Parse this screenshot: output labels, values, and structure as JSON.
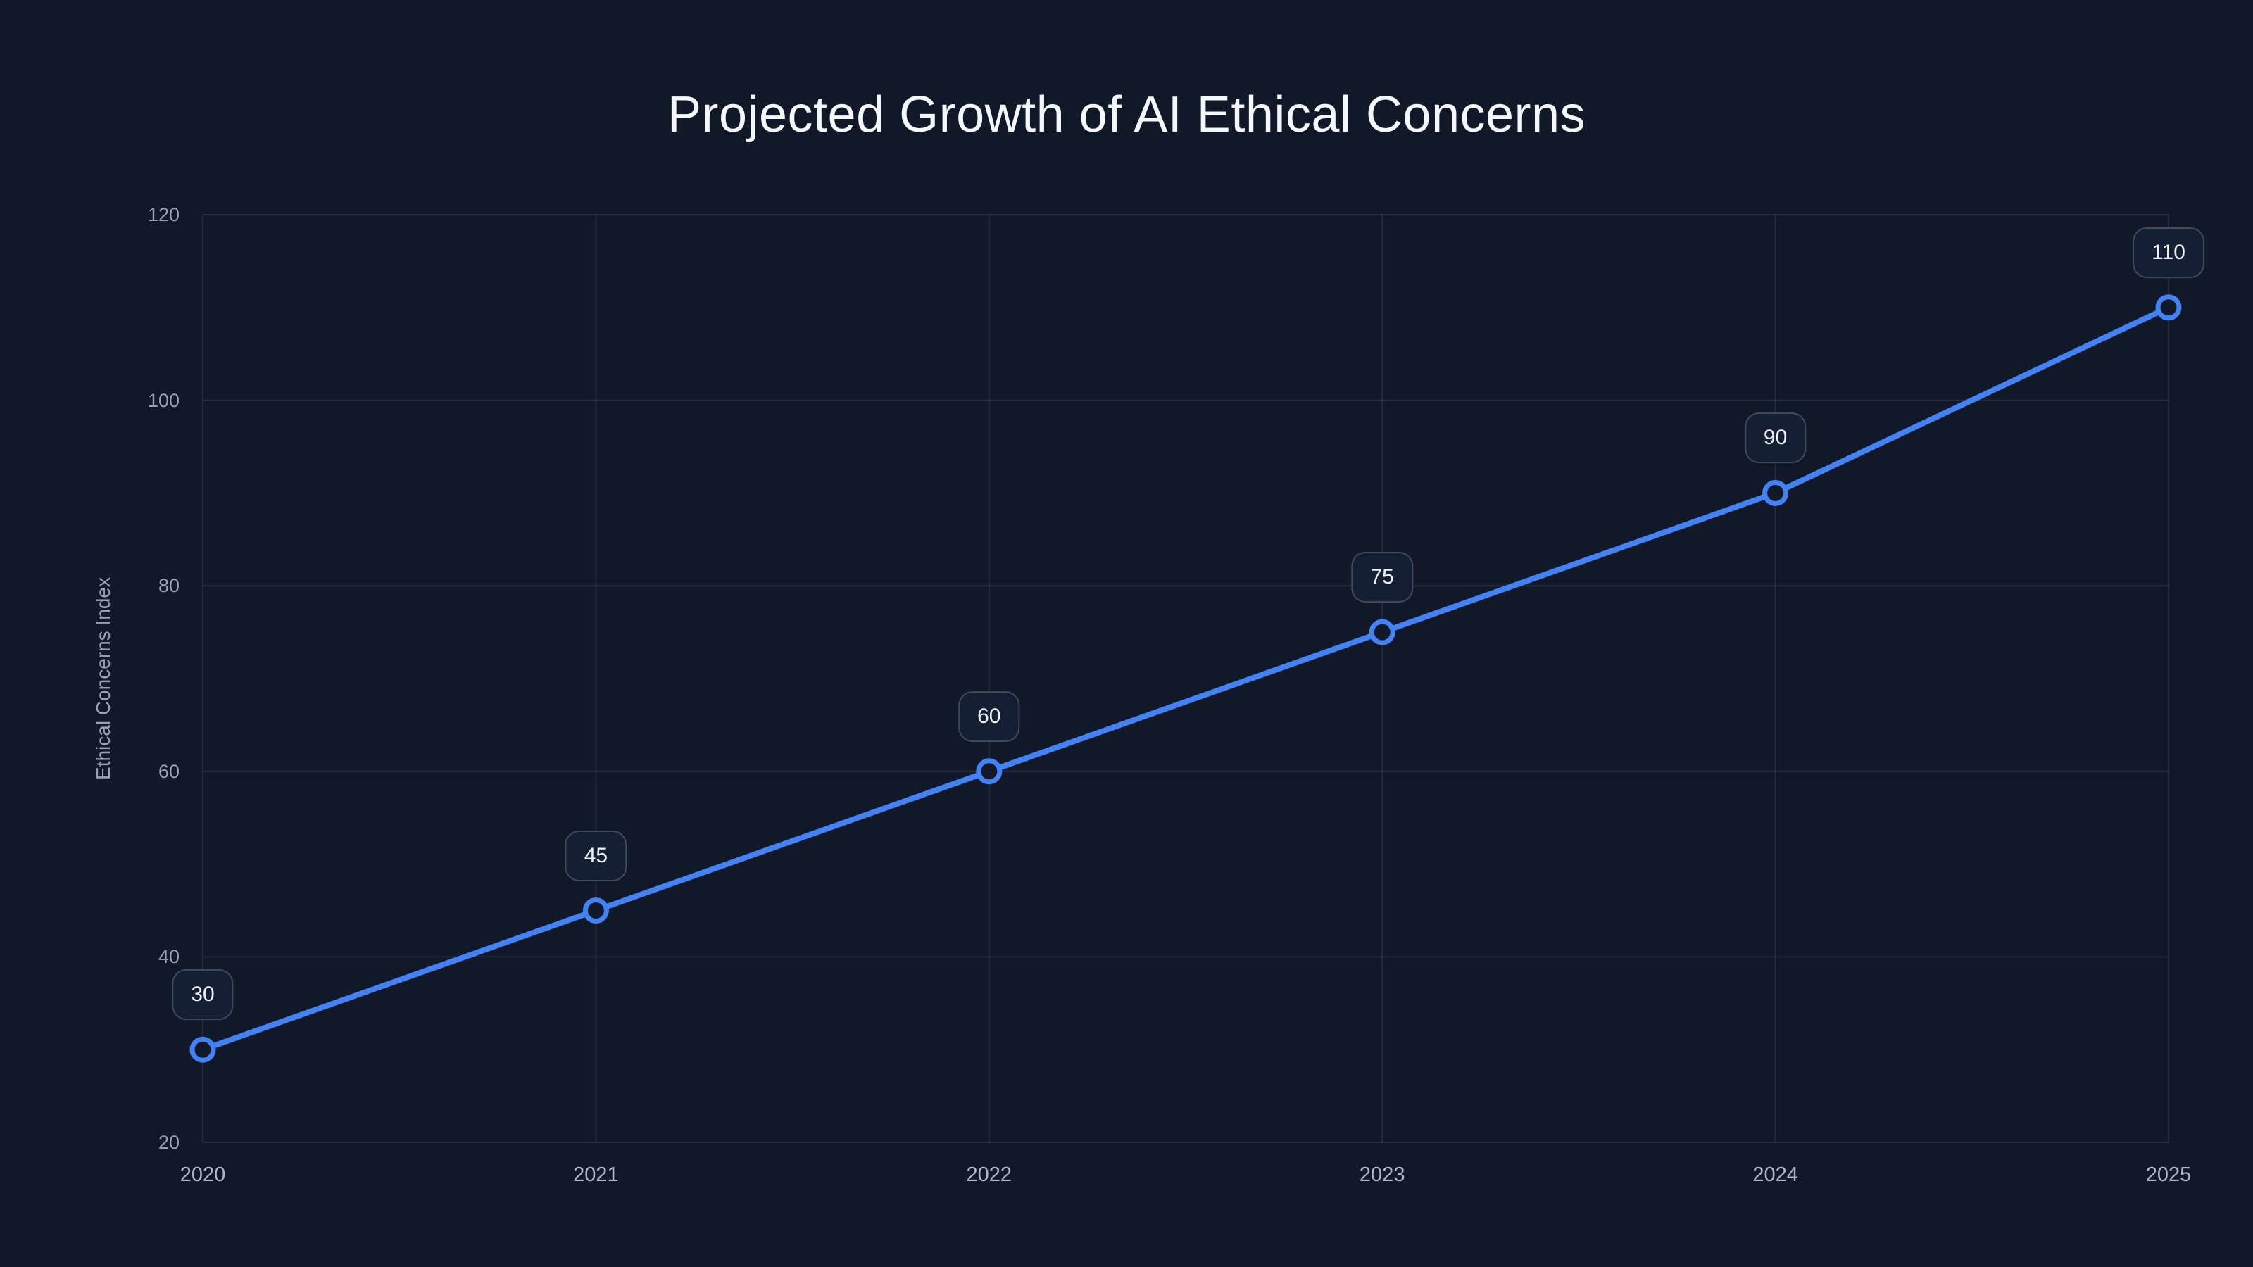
{
  "chart_data": {
    "type": "line",
    "title": "Projected Growth of AI Ethical Concerns",
    "xlabel": "",
    "ylabel": "Ethical Concerns Index",
    "categories": [
      "2020",
      "2021",
      "2022",
      "2023",
      "2024",
      "2025"
    ],
    "series": [
      {
        "name": "Ethical Concerns Index",
        "values": [
          30,
          45,
          60,
          75,
          90,
          110
        ]
      }
    ],
    "point_labels": [
      "30",
      "45",
      "60",
      "75",
      "90",
      "110"
    ],
    "ylim": [
      20,
      120
    ],
    "yticks": [
      20,
      40,
      60,
      80,
      100,
      120
    ],
    "grid": true,
    "legend_position": "none",
    "marker_style": "hollow-circle",
    "colors": {
      "background": "#111828",
      "line": "#4282f5",
      "marker_fill": "#111828",
      "grid": "rgba(148,163,184,0.15)",
      "title_text": "#f4f7fb",
      "y_tick_text": "#97a3b5",
      "x_tick_text": "#aeb8c7",
      "badge_background": "#151f34",
      "badge_border": "#3e4a5e",
      "badge_text": "#eef2f8"
    }
  }
}
